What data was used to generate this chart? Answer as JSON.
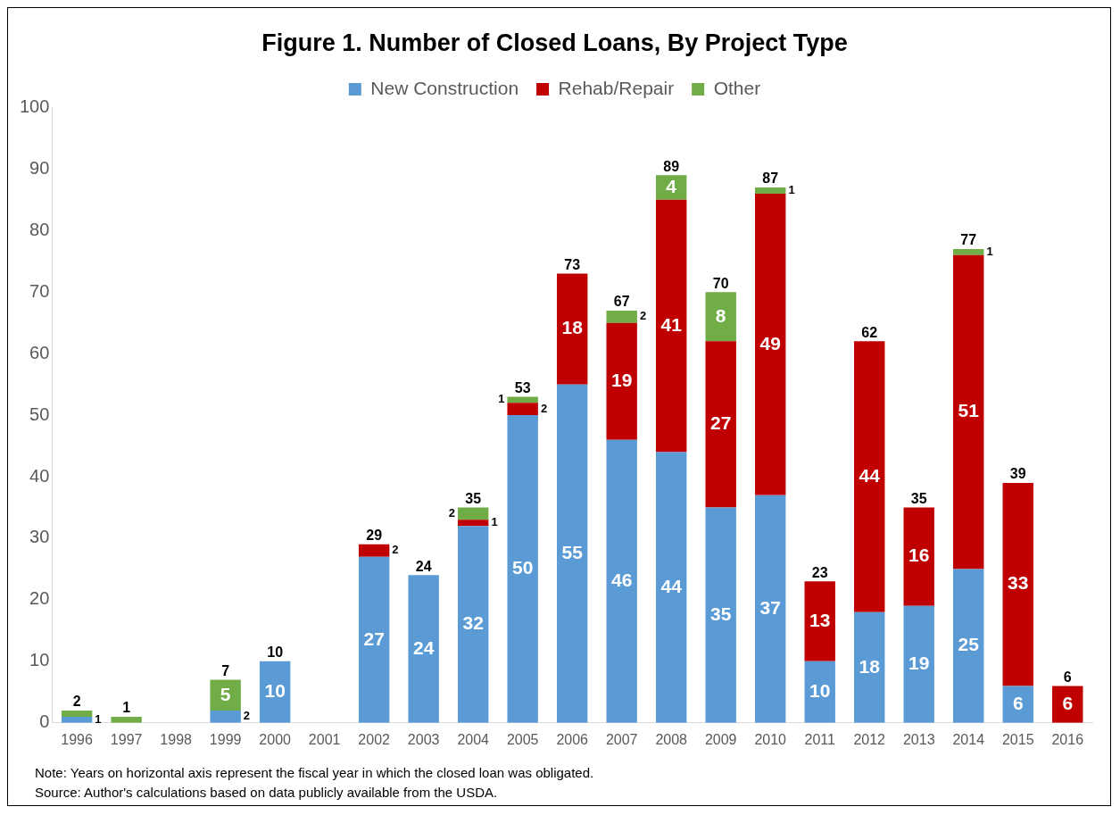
{
  "chart_data": {
    "type": "bar",
    "stacked": true,
    "title": "Figure 1. Number of Closed Loans, By Project Type",
    "categories": [
      "1996",
      "1997",
      "1998",
      "1999",
      "2000",
      "2001",
      "2002",
      "2003",
      "2004",
      "2005",
      "2006",
      "2007",
      "2008",
      "2009",
      "2010",
      "2011",
      "2012",
      "2013",
      "2014",
      "2015",
      "2016"
    ],
    "series": [
      {
        "name": "New Construction",
        "color": "#5b9bd5",
        "values": [
          1,
          0,
          0,
          2,
          10,
          0,
          27,
          24,
          32,
          50,
          55,
          46,
          44,
          35,
          37,
          10,
          18,
          19,
          25,
          6,
          0
        ],
        "value_labels": [
          "1",
          null,
          null,
          "2",
          "10",
          null,
          "27",
          "24",
          "32",
          "50",
          "55",
          "46",
          "44",
          "35",
          "37",
          "10",
          "18",
          "19",
          "25",
          "6",
          null
        ]
      },
      {
        "name": "Rehab/Repair",
        "color": "#c00000",
        "values": [
          0,
          0,
          0,
          0,
          0,
          0,
          2,
          0,
          1,
          2,
          18,
          19,
          41,
          27,
          49,
          13,
          44,
          16,
          51,
          33,
          6
        ],
        "value_labels": [
          null,
          null,
          null,
          null,
          null,
          null,
          "2",
          null,
          "1",
          "2",
          "18",
          "19",
          "41",
          "27",
          "49",
          "13",
          "44",
          "16",
          "51",
          "33",
          "6"
        ]
      },
      {
        "name": "Other",
        "color": "#70ad47",
        "values": [
          1,
          1,
          0,
          5,
          0,
          0,
          0,
          0,
          2,
          1,
          0,
          2,
          4,
          8,
          1,
          0,
          0,
          0,
          1,
          0,
          0
        ],
        "value_labels": [
          null,
          null,
          null,
          "5",
          null,
          null,
          null,
          null,
          "2",
          "1",
          null,
          "2",
          "4",
          "8",
          "1",
          null,
          null,
          null,
          "1",
          null,
          null
        ]
      }
    ],
    "totals": [
      "2",
      "1",
      null,
      "7",
      "10",
      null,
      "29",
      "24",
      "35",
      "53",
      "73",
      "67",
      "89",
      "70",
      "87",
      "23",
      "62",
      "35",
      "77",
      "39",
      "6"
    ],
    "ylim": [
      0,
      100
    ],
    "yticks": [
      0,
      10,
      20,
      30,
      40,
      50,
      60,
      70,
      80,
      90,
      100
    ],
    "grid": false,
    "legend": "top",
    "annotations": [
      "Note: Years on horizontal axis represent the fiscal year in which the closed loan was obligated.",
      "Source: Author's calculations based on data publicly available from the USDA."
    ]
  }
}
